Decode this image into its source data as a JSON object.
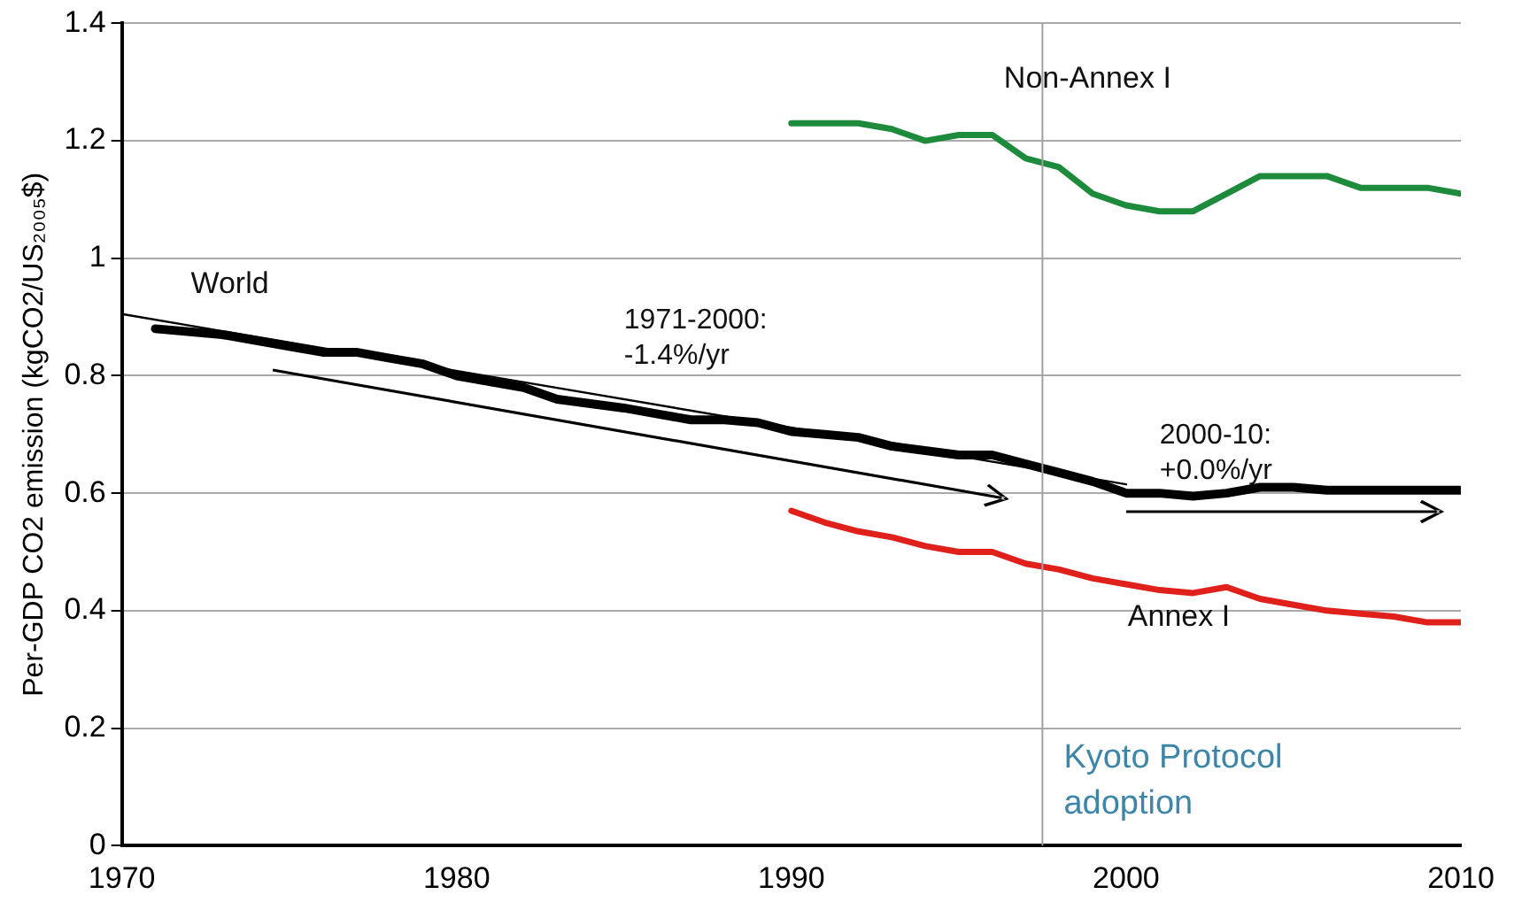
{
  "chart_data": {
    "type": "line",
    "ylabel": "Per-GDP CO2 emission (kgCO2/US₂₀₀₅$)",
    "xlim": [
      1970,
      2010
    ],
    "xticks": [
      1970,
      1980,
      1990,
      2000,
      2010
    ],
    "ylim": [
      0,
      1.4
    ],
    "yticks": [
      0,
      0.2,
      0.4,
      0.6,
      0.8,
      1,
      1.2,
      1.4
    ],
    "grid": "y",
    "marker": "none",
    "series": [
      {
        "name": "World",
        "color": "#000000",
        "x": [
          1971,
          1973,
          1975,
          1976,
          1977,
          1978,
          1979,
          1980,
          1982,
          1983,
          1985,
          1986,
          1987,
          1988,
          1989,
          1990,
          1991,
          1992,
          1993,
          1995,
          1996,
          1997,
          1998,
          1999,
          2000,
          2001,
          2002,
          2003,
          2004,
          2005,
          2006,
          2008,
          2010
        ],
        "values": [
          0.88,
          0.87,
          0.85,
          0.84,
          0.84,
          0.83,
          0.82,
          0.8,
          0.78,
          0.76,
          0.745,
          0.735,
          0.725,
          0.725,
          0.72,
          0.705,
          0.7,
          0.695,
          0.68,
          0.665,
          0.665,
          0.65,
          0.635,
          0.62,
          0.6,
          0.6,
          0.595,
          0.6,
          0.61,
          0.61,
          0.605,
          0.605,
          0.605
        ]
      },
      {
        "name": "Non-Annex I",
        "color": "#1e8a3c",
        "x": [
          1990,
          1992,
          1993,
          1994,
          1995,
          1996,
          1997,
          1998,
          1999,
          2000,
          2001,
          2002,
          2003,
          2004,
          2005,
          2006,
          2007,
          2008,
          2009,
          2010
        ],
        "values": [
          1.23,
          1.23,
          1.22,
          1.2,
          1.21,
          1.21,
          1.17,
          1.155,
          1.11,
          1.09,
          1.08,
          1.08,
          1.11,
          1.14,
          1.14,
          1.14,
          1.12,
          1.12,
          1.12,
          1.11
        ]
      },
      {
        "name": "Annex I",
        "color": "#e0201b",
        "x": [
          1990,
          1991,
          1992,
          1993,
          1994,
          1995,
          1996,
          1997,
          1998,
          1999,
          2000,
          2001,
          2002,
          2003,
          2004,
          2005,
          2006,
          2007,
          2008,
          2009,
          2010
        ],
        "values": [
          0.57,
          0.55,
          0.535,
          0.525,
          0.51,
          0.5,
          0.5,
          0.48,
          0.47,
          0.455,
          0.445,
          0.435,
          0.43,
          0.44,
          0.42,
          0.41,
          0.4,
          0.395,
          0.39,
          0.38,
          0.38
        ]
      },
      {
        "type": "line",
        "color": "#000000",
        "x": [
          1970,
          2000
        ],
        "values": [
          0.905,
          0.615
        ]
      }
    ],
    "ref_lines": [
      {
        "axis": "x",
        "value": 1997.5,
        "label": "Kyoto Protocol\nadoption",
        "color": "#a0a0a0"
      }
    ],
    "annotations": [
      "1971-2000:\n-1.4%/yr",
      "2000-10:\n+0.0%/yr"
    ]
  }
}
